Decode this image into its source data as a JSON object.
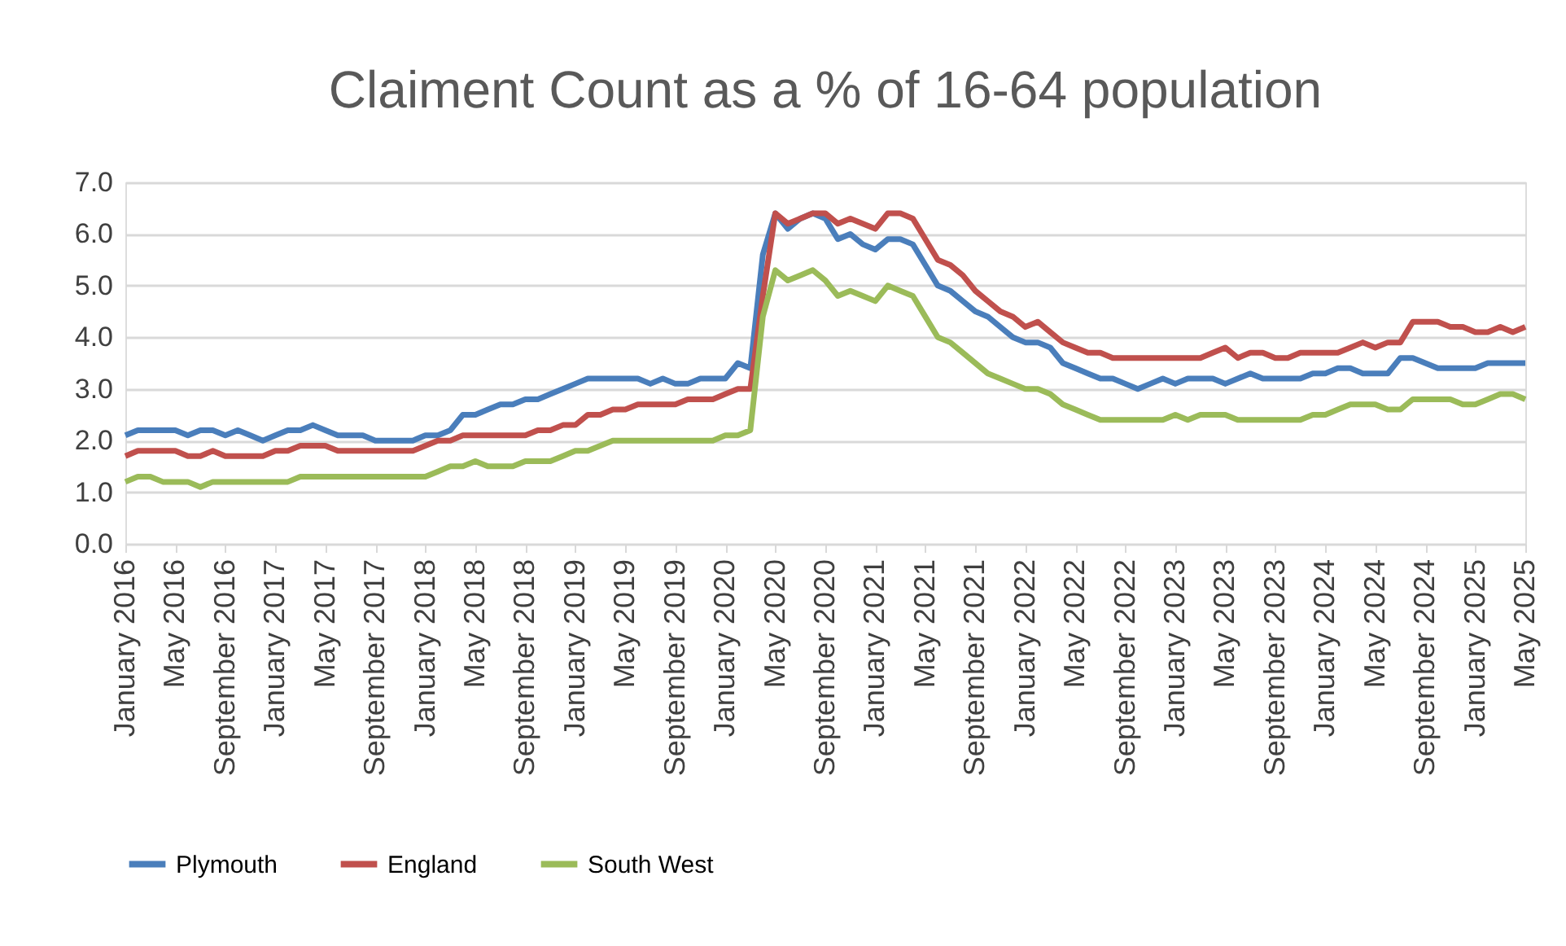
{
  "chart_data": {
    "type": "line",
    "title": "Claiment Count as a % of 16-64 population",
    "categories": [
      "January 2016",
      null,
      null,
      null,
      "May 2016",
      null,
      null,
      null,
      "September 2016",
      null,
      null,
      null,
      "January 2017",
      null,
      null,
      null,
      "May 2017",
      null,
      null,
      null,
      "September 2017",
      null,
      null,
      null,
      "January 2018",
      null,
      null,
      null,
      "May 2018",
      null,
      null,
      null,
      "September 2018",
      null,
      null,
      null,
      "January 2019",
      null,
      null,
      null,
      "May 2019",
      null,
      null,
      null,
      "September 2019",
      null,
      null,
      null,
      "January 2020",
      null,
      null,
      null,
      "May 2020",
      null,
      null,
      null,
      "September 2020",
      null,
      null,
      null,
      "January 2021",
      null,
      null,
      null,
      "May 2021",
      null,
      null,
      null,
      "September 2021",
      null,
      null,
      null,
      "January 2022",
      null,
      null,
      null,
      "May 2022",
      null,
      null,
      null,
      "September 2022",
      null,
      null,
      null,
      "January 2023",
      null,
      null,
      null,
      "May 2023",
      null,
      null,
      null,
      "September 2023",
      null,
      null,
      null,
      "January 2024",
      null,
      null,
      null,
      "May 2024",
      null,
      null,
      null,
      "September 2024",
      null,
      null,
      null,
      "January 2025",
      null,
      null,
      null,
      "May 2025"
    ],
    "series": [
      {
        "name": "Plymouth",
        "color": "#4a7ebb",
        "values": [
          2.1,
          2.2,
          2.2,
          2.2,
          2.2,
          2.1,
          2.2,
          2.2,
          2.1,
          2.2,
          2.1,
          2.0,
          2.1,
          2.2,
          2.2,
          2.3,
          2.2,
          2.1,
          2.1,
          2.1,
          2.0,
          2.0,
          2.0,
          2.0,
          2.1,
          2.1,
          2.2,
          2.5,
          2.5,
          2.6,
          2.7,
          2.7,
          2.8,
          2.8,
          2.9,
          3.0,
          3.1,
          3.2,
          3.2,
          3.2,
          3.2,
          3.2,
          3.1,
          3.2,
          3.1,
          3.1,
          3.2,
          3.2,
          3.2,
          3.5,
          3.4,
          5.6,
          6.4,
          6.1,
          6.3,
          6.4,
          6.3,
          5.9,
          6.0,
          5.8,
          5.7,
          5.9,
          5.9,
          5.8,
          5.4,
          5.0,
          4.9,
          4.7,
          4.5,
          4.4,
          4.2,
          4.0,
          3.9,
          3.9,
          3.8,
          3.5,
          3.4,
          3.3,
          3.2,
          3.2,
          3.1,
          3.0,
          3.1,
          3.2,
          3.1,
          3.2,
          3.2,
          3.2,
          3.1,
          3.2,
          3.3,
          3.2,
          3.2,
          3.2,
          3.2,
          3.3,
          3.3,
          3.4,
          3.4,
          3.3,
          3.3,
          3.3,
          3.6,
          3.6,
          3.5,
          3.4,
          3.4,
          3.4,
          3.4,
          3.5,
          3.5,
          3.5,
          3.5
        ]
      },
      {
        "name": "England",
        "color": "#c0504d",
        "values": [
          1.7,
          1.8,
          1.8,
          1.8,
          1.8,
          1.7,
          1.7,
          1.8,
          1.7,
          1.7,
          1.7,
          1.7,
          1.8,
          1.8,
          1.9,
          1.9,
          1.9,
          1.8,
          1.8,
          1.8,
          1.8,
          1.8,
          1.8,
          1.8,
          1.9,
          2.0,
          2.0,
          2.1,
          2.1,
          2.1,
          2.1,
          2.1,
          2.1,
          2.2,
          2.2,
          2.3,
          2.3,
          2.5,
          2.5,
          2.6,
          2.6,
          2.7,
          2.7,
          2.7,
          2.7,
          2.8,
          2.8,
          2.8,
          2.9,
          3.0,
          3.0,
          4.8,
          6.4,
          6.2,
          6.3,
          6.4,
          6.4,
          6.2,
          6.3,
          6.2,
          6.1,
          6.4,
          6.4,
          6.3,
          5.9,
          5.5,
          5.4,
          5.2,
          4.9,
          4.7,
          4.5,
          4.4,
          4.2,
          4.3,
          4.1,
          3.9,
          3.8,
          3.7,
          3.7,
          3.6,
          3.6,
          3.6,
          3.6,
          3.6,
          3.6,
          3.6,
          3.6,
          3.7,
          3.8,
          3.6,
          3.7,
          3.7,
          3.6,
          3.6,
          3.7,
          3.7,
          3.7,
          3.7,
          3.8,
          3.9,
          3.8,
          3.9,
          3.9,
          4.3,
          4.3,
          4.3,
          4.2,
          4.2,
          4.1,
          4.1,
          4.2,
          4.1,
          4.2
        ]
      },
      {
        "name": "South West",
        "color": "#9bbb59",
        "values": [
          1.2,
          1.3,
          1.3,
          1.2,
          1.2,
          1.2,
          1.1,
          1.2,
          1.2,
          1.2,
          1.2,
          1.2,
          1.2,
          1.2,
          1.3,
          1.3,
          1.3,
          1.3,
          1.3,
          1.3,
          1.3,
          1.3,
          1.3,
          1.3,
          1.3,
          1.4,
          1.5,
          1.5,
          1.6,
          1.5,
          1.5,
          1.5,
          1.6,
          1.6,
          1.6,
          1.7,
          1.8,
          1.8,
          1.9,
          2.0,
          2.0,
          2.0,
          2.0,
          2.0,
          2.0,
          2.0,
          2.0,
          2.0,
          2.1,
          2.1,
          2.2,
          4.4,
          5.3,
          5.1,
          5.2,
          5.3,
          5.1,
          4.8,
          4.9,
          4.8,
          4.7,
          5.0,
          4.9,
          4.8,
          4.4,
          4.0,
          3.9,
          3.7,
          3.5,
          3.3,
          3.2,
          3.1,
          3.0,
          3.0,
          2.9,
          2.7,
          2.6,
          2.5,
          2.4,
          2.4,
          2.4,
          2.4,
          2.4,
          2.4,
          2.5,
          2.4,
          2.5,
          2.5,
          2.5,
          2.4,
          2.4,
          2.4,
          2.4,
          2.4,
          2.4,
          2.5,
          2.5,
          2.6,
          2.7,
          2.7,
          2.7,
          2.6,
          2.6,
          2.8,
          2.8,
          2.8,
          2.8,
          2.7,
          2.7,
          2.8,
          2.9,
          2.9,
          2.8
        ]
      }
    ],
    "ylim": [
      0,
      7
    ],
    "yticks": [
      {
        "value": 0,
        "label": "0.0"
      },
      {
        "value": 1,
        "label": "1.0"
      },
      {
        "value": 2,
        "label": "2.0"
      },
      {
        "value": 3,
        "label": "3.0"
      },
      {
        "value": 4,
        "label": "4.0"
      },
      {
        "value": 5,
        "label": "5.0"
      },
      {
        "value": 6,
        "label": "6.0"
      },
      {
        "value": 7,
        "label": "7.0"
      }
    ],
    "grid": "y",
    "legend": "bottom",
    "marker": "none",
    "line_style": "solid"
  }
}
